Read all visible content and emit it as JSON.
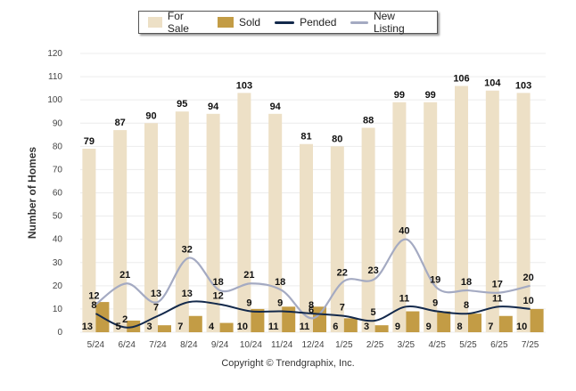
{
  "chart_data": {
    "type": "bar",
    "ylabel": "Number of Homes",
    "ylim": [
      0,
      120
    ],
    "yticks": [
      0,
      10,
      20,
      30,
      40,
      50,
      60,
      70,
      80,
      90,
      100,
      110,
      120
    ],
    "grid": true,
    "legend_position": "top",
    "categories": [
      "5/24",
      "6/24",
      "7/24",
      "8/24",
      "9/24",
      "10/24",
      "11/24",
      "12/24",
      "1/25",
      "2/25",
      "3/25",
      "4/25",
      "5/25",
      "6/25",
      "7/25"
    ],
    "series": [
      {
        "name": "For Sale",
        "kind": "bar",
        "color": "#ede0c6",
        "values": [
          79,
          87,
          90,
          95,
          94,
          103,
          94,
          81,
          80,
          88,
          99,
          99,
          106,
          104,
          103
        ]
      },
      {
        "name": "Sold",
        "kind": "bar",
        "color": "#c39c45",
        "values": [
          13,
          5,
          3,
          7,
          4,
          10,
          11,
          11,
          6,
          3,
          9,
          9,
          8,
          7,
          10
        ]
      },
      {
        "name": "Pended",
        "kind": "line",
        "color": "#13294b",
        "values": [
          8,
          2,
          7,
          13,
          12,
          9,
          9,
          8,
          7,
          5,
          11,
          9,
          8,
          11,
          10
        ]
      },
      {
        "name": "New Listing",
        "kind": "line",
        "color": "#a4aac2",
        "values": [
          12,
          21,
          13,
          32,
          18,
          21,
          18,
          6,
          22,
          23,
          40,
          19,
          18,
          17,
          20
        ]
      }
    ]
  },
  "footer": {
    "copyright": "Copyright © Trendgraphix, Inc."
  }
}
